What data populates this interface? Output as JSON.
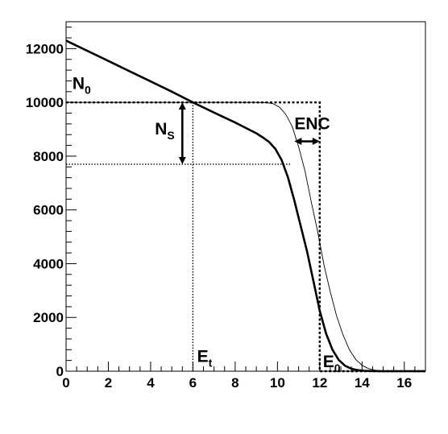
{
  "chart_data": {
    "type": "line",
    "title": "",
    "xlabel": "",
    "ylabel": "",
    "xlim": [
      0,
      17
    ],
    "ylim": [
      0,
      13000
    ],
    "grid": false,
    "legend": "none",
    "x_ticks": [
      0,
      2,
      4,
      6,
      8,
      10,
      12,
      14,
      16
    ],
    "y_ticks": [
      0,
      2000,
      4000,
      6000,
      8000,
      10000,
      12000
    ],
    "x_tick_labels": [
      "0",
      "2",
      "4",
      "6",
      "8",
      "10",
      "12",
      "14",
      "16"
    ],
    "y_tick_labels": [
      "0",
      "2000",
      "4000",
      "6000",
      "8000",
      "10000",
      "12000"
    ],
    "series": [
      {
        "style": "thick",
        "x": [
          0,
          1,
          2,
          3,
          4,
          5,
          6,
          7,
          8,
          8.5,
          9,
          9.3,
          9.6,
          9.9,
          10.2,
          10.5,
          10.8,
          11.1,
          11.4,
          11.7,
          12.0,
          12.3,
          12.6,
          12.9,
          13.2,
          13.5,
          13.8,
          14.1,
          14.5,
          15,
          16,
          17
        ],
        "y": [
          12300,
          11920,
          11540,
          11160,
          10780,
          10400,
          10000,
          9620,
          9250,
          9050,
          8850,
          8700,
          8530,
          8270,
          7850,
          7200,
          6350,
          5400,
          4450,
          3350,
          2250,
          1400,
          800,
          420,
          200,
          90,
          40,
          15,
          5,
          0,
          0,
          0
        ]
      },
      {
        "style": "thin",
        "x": [
          0,
          9.0,
          9.5,
          9.8,
          10.1,
          10.4,
          10.7,
          11.0,
          11.3,
          11.6,
          11.9,
          12.2,
          12.5,
          12.8,
          13.1,
          13.4,
          13.7,
          14.0,
          14.3,
          14.6,
          15,
          16,
          17
        ],
        "y": [
          10000,
          10000,
          9990,
          9950,
          9820,
          9550,
          9100,
          8350,
          7450,
          6300,
          5200,
          3950,
          2950,
          2050,
          1350,
          800,
          440,
          220,
          100,
          40,
          10,
          0,
          0
        ]
      },
      {
        "style": "step-dashed",
        "x": [
          0,
          12,
          12,
          17
        ],
        "y": [
          10000,
          10000,
          0,
          0
        ]
      }
    ],
    "guides": [
      {
        "kind": "hline",
        "y": 7700,
        "x_from": 0,
        "x_to": 10.6
      },
      {
        "kind": "vline",
        "x": 6,
        "y_from": 0,
        "y_to": 10000
      }
    ],
    "arrows": [
      {
        "name": "ns-arrow",
        "x": 5.5,
        "y_from": 10000,
        "y_to": 7700
      },
      {
        "name": "enc-arrow",
        "y": 8550,
        "x_from": 10.8,
        "x_to": 12.0
      }
    ],
    "annotations": [
      {
        "id": "n0",
        "main": "N",
        "sub": "0",
        "x": 0.3,
        "y": 10500
      },
      {
        "id": "ns",
        "main": "N",
        "sub": "S",
        "x": 4.2,
        "y": 8800
      },
      {
        "id": "enc",
        "main": "ENC",
        "sub": "",
        "x": 10.8,
        "y": 9000
      },
      {
        "id": "et",
        "main": "E",
        "sub": "t",
        "x": 6.2,
        "y": 350
      },
      {
        "id": "e0",
        "main": "E",
        "sub": "0",
        "x": 12.15,
        "y": 150
      }
    ]
  }
}
